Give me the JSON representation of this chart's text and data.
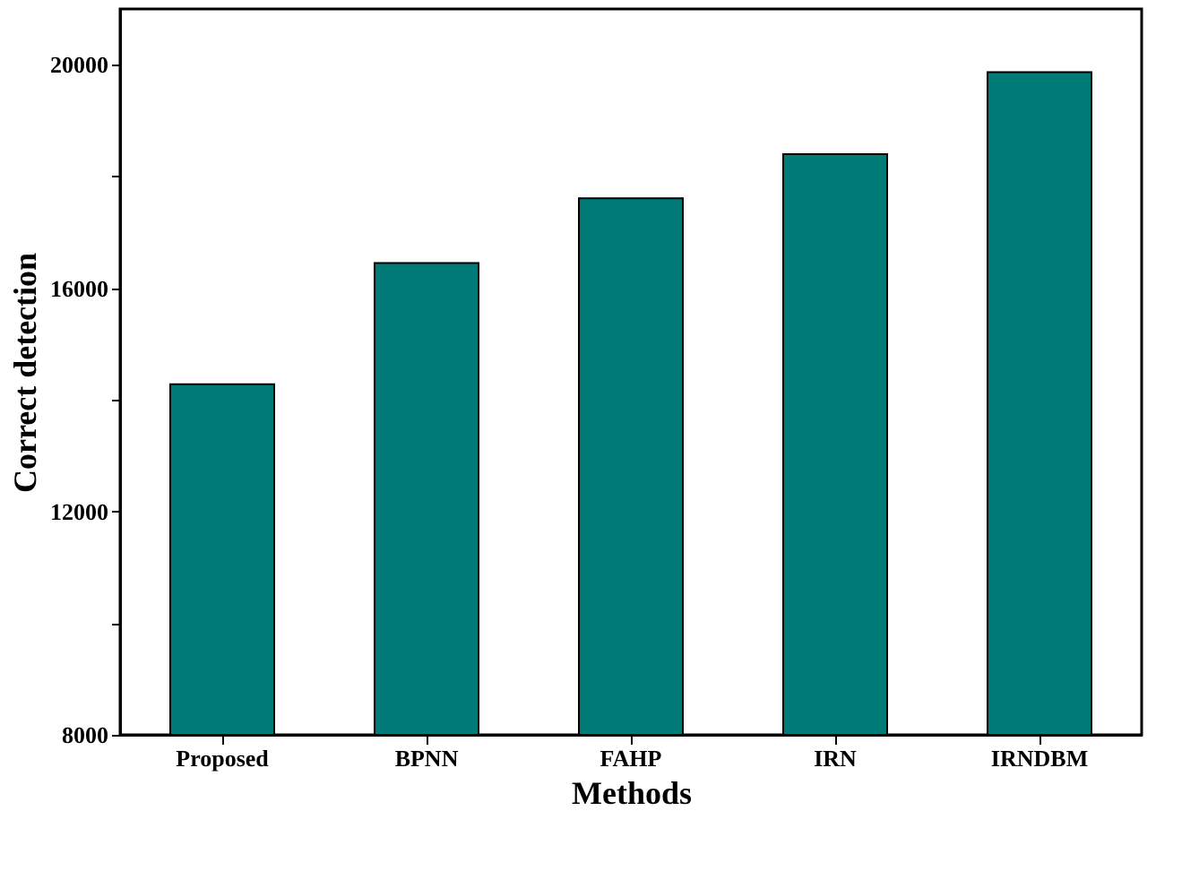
{
  "chart_data": {
    "type": "bar",
    "xlabel": "Methods",
    "ylabel": "Correct detection",
    "categories": [
      "Proposed",
      "BPNN",
      "FAHP",
      "IRN",
      "IRNDBM"
    ],
    "values": [
      14280,
      16450,
      17610,
      18400,
      19870
    ],
    "color": "#007b78",
    "ylim": [
      8000,
      21000
    ],
    "yticks": [
      8000,
      {
        "value": 10000,
        "label": null
      },
      12000,
      {
        "value": 14000,
        "label": null
      },
      16000,
      {
        "value": 18000,
        "label": null
      },
      20000
    ],
    "grid": false
  }
}
